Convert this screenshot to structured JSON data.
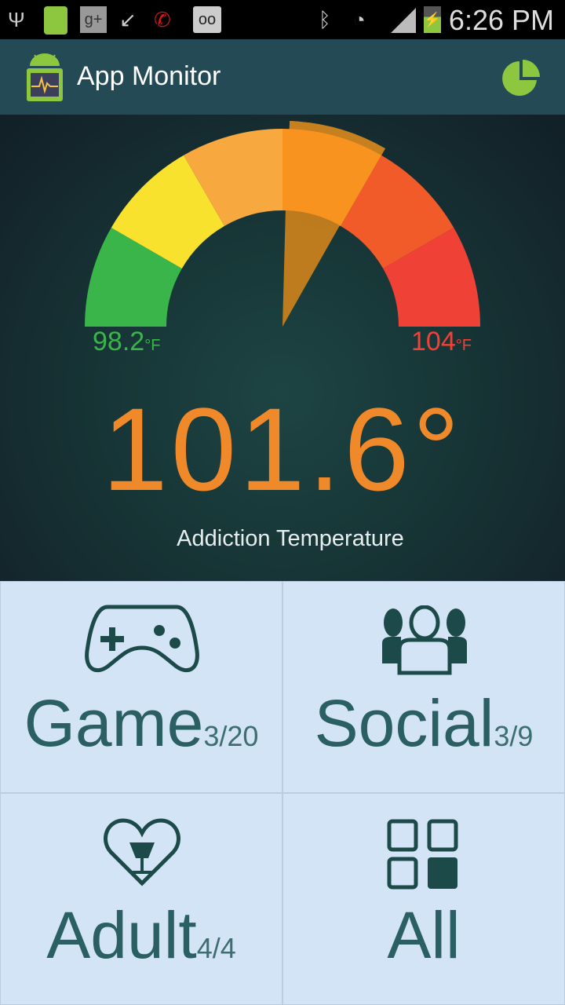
{
  "status_bar": {
    "time": "6:26 PM",
    "icons": [
      "usb-icon",
      "app-monitor-notification-icon",
      "google-plus-icon",
      "missed-call-icon",
      "wifi-call-icon",
      "voicemail-icon",
      "bluetooth-icon",
      "wifi-icon",
      "signal-icon",
      "battery-charging-icon"
    ]
  },
  "app_bar": {
    "title": "App Monitor",
    "action_icon": "pie-chart-icon",
    "accent": "#8dc63f"
  },
  "gauge": {
    "min_label": "98.2",
    "min_unit": "F",
    "max_label": "104",
    "max_unit": "F",
    "min": 98.2,
    "max": 104,
    "value": 101.6,
    "value_display": "101.6°",
    "caption": "Addiction Temperature",
    "segment_colors": [
      "#39b54a",
      "#f9e22d",
      "#f7a83e",
      "#f7931e",
      "#f15a29",
      "#ef4136"
    ],
    "active_segment": 3
  },
  "categories": [
    {
      "name": "Game",
      "count": "3/20",
      "icon": "gamepad-icon"
    },
    {
      "name": "Social",
      "count": "3/9",
      "icon": "people-icon"
    },
    {
      "name": "Adult",
      "count": "4/4",
      "icon": "heart-glass-icon"
    },
    {
      "name": "All",
      "count": "",
      "icon": "grid-icon"
    }
  ]
}
